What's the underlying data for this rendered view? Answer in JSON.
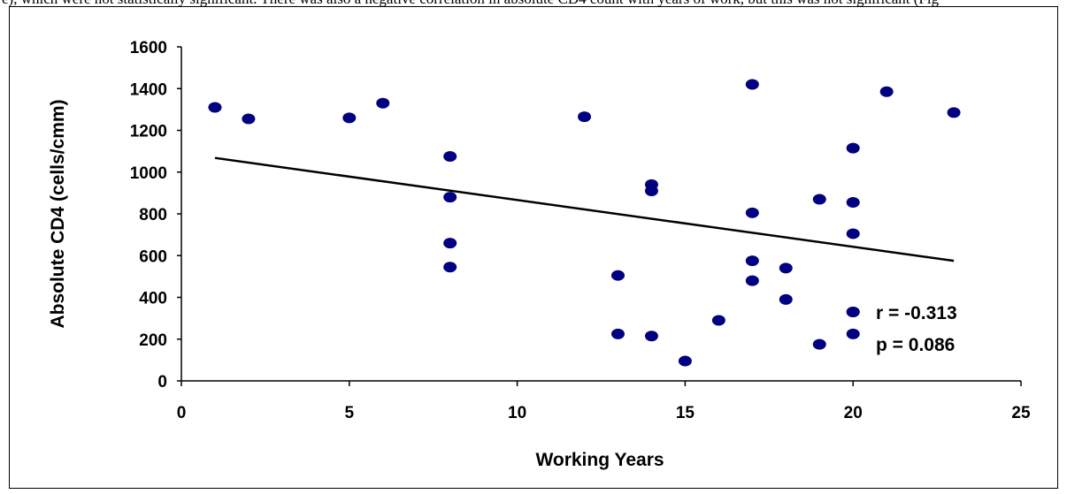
{
  "caption_fragment": "e), which were not statistically significant. There was also a negative correlation in absolute CD4 count with years of work, but this was not significant (Fig",
  "chart_data": {
    "type": "scatter",
    "title": "",
    "xlabel": "Working Years",
    "ylabel": "Absolute CD4 (cells/cmm)",
    "xlim": [
      0,
      25
    ],
    "ylim": [
      0,
      1600
    ],
    "x_ticks": [
      0,
      5,
      10,
      15,
      20,
      25
    ],
    "y_ticks": [
      0,
      200,
      400,
      600,
      800,
      1000,
      1200,
      1400,
      1600
    ],
    "grid": false,
    "legend": "none",
    "marker_color": "#000080",
    "points": [
      {
        "x": 1,
        "y": 1310
      },
      {
        "x": 2,
        "y": 1255
      },
      {
        "x": 5,
        "y": 1260
      },
      {
        "x": 6,
        "y": 1330
      },
      {
        "x": 8,
        "y": 1075
      },
      {
        "x": 8,
        "y": 880
      },
      {
        "x": 8,
        "y": 660
      },
      {
        "x": 8,
        "y": 545
      },
      {
        "x": 12,
        "y": 1265
      },
      {
        "x": 13,
        "y": 505
      },
      {
        "x": 13,
        "y": 225
      },
      {
        "x": 14,
        "y": 940
      },
      {
        "x": 14,
        "y": 910
      },
      {
        "x": 14,
        "y": 215
      },
      {
        "x": 15,
        "y": 95
      },
      {
        "x": 16,
        "y": 290
      },
      {
        "x": 17,
        "y": 1420
      },
      {
        "x": 17,
        "y": 805
      },
      {
        "x": 17,
        "y": 575
      },
      {
        "x": 17,
        "y": 480
      },
      {
        "x": 18,
        "y": 540
      },
      {
        "x": 18,
        "y": 390
      },
      {
        "x": 19,
        "y": 870
      },
      {
        "x": 19,
        "y": 175
      },
      {
        "x": 20,
        "y": 1115
      },
      {
        "x": 20,
        "y": 855
      },
      {
        "x": 20,
        "y": 705
      },
      {
        "x": 20,
        "y": 330
      },
      {
        "x": 20,
        "y": 225
      },
      {
        "x": 21,
        "y": 1385
      },
      {
        "x": 23,
        "y": 1285
      }
    ],
    "trendline": {
      "x": [
        1,
        23
      ],
      "y": [
        1068,
        575
      ],
      "color": "#000000"
    },
    "annotations": [
      "r = -0.313",
      "p = 0.086"
    ]
  }
}
